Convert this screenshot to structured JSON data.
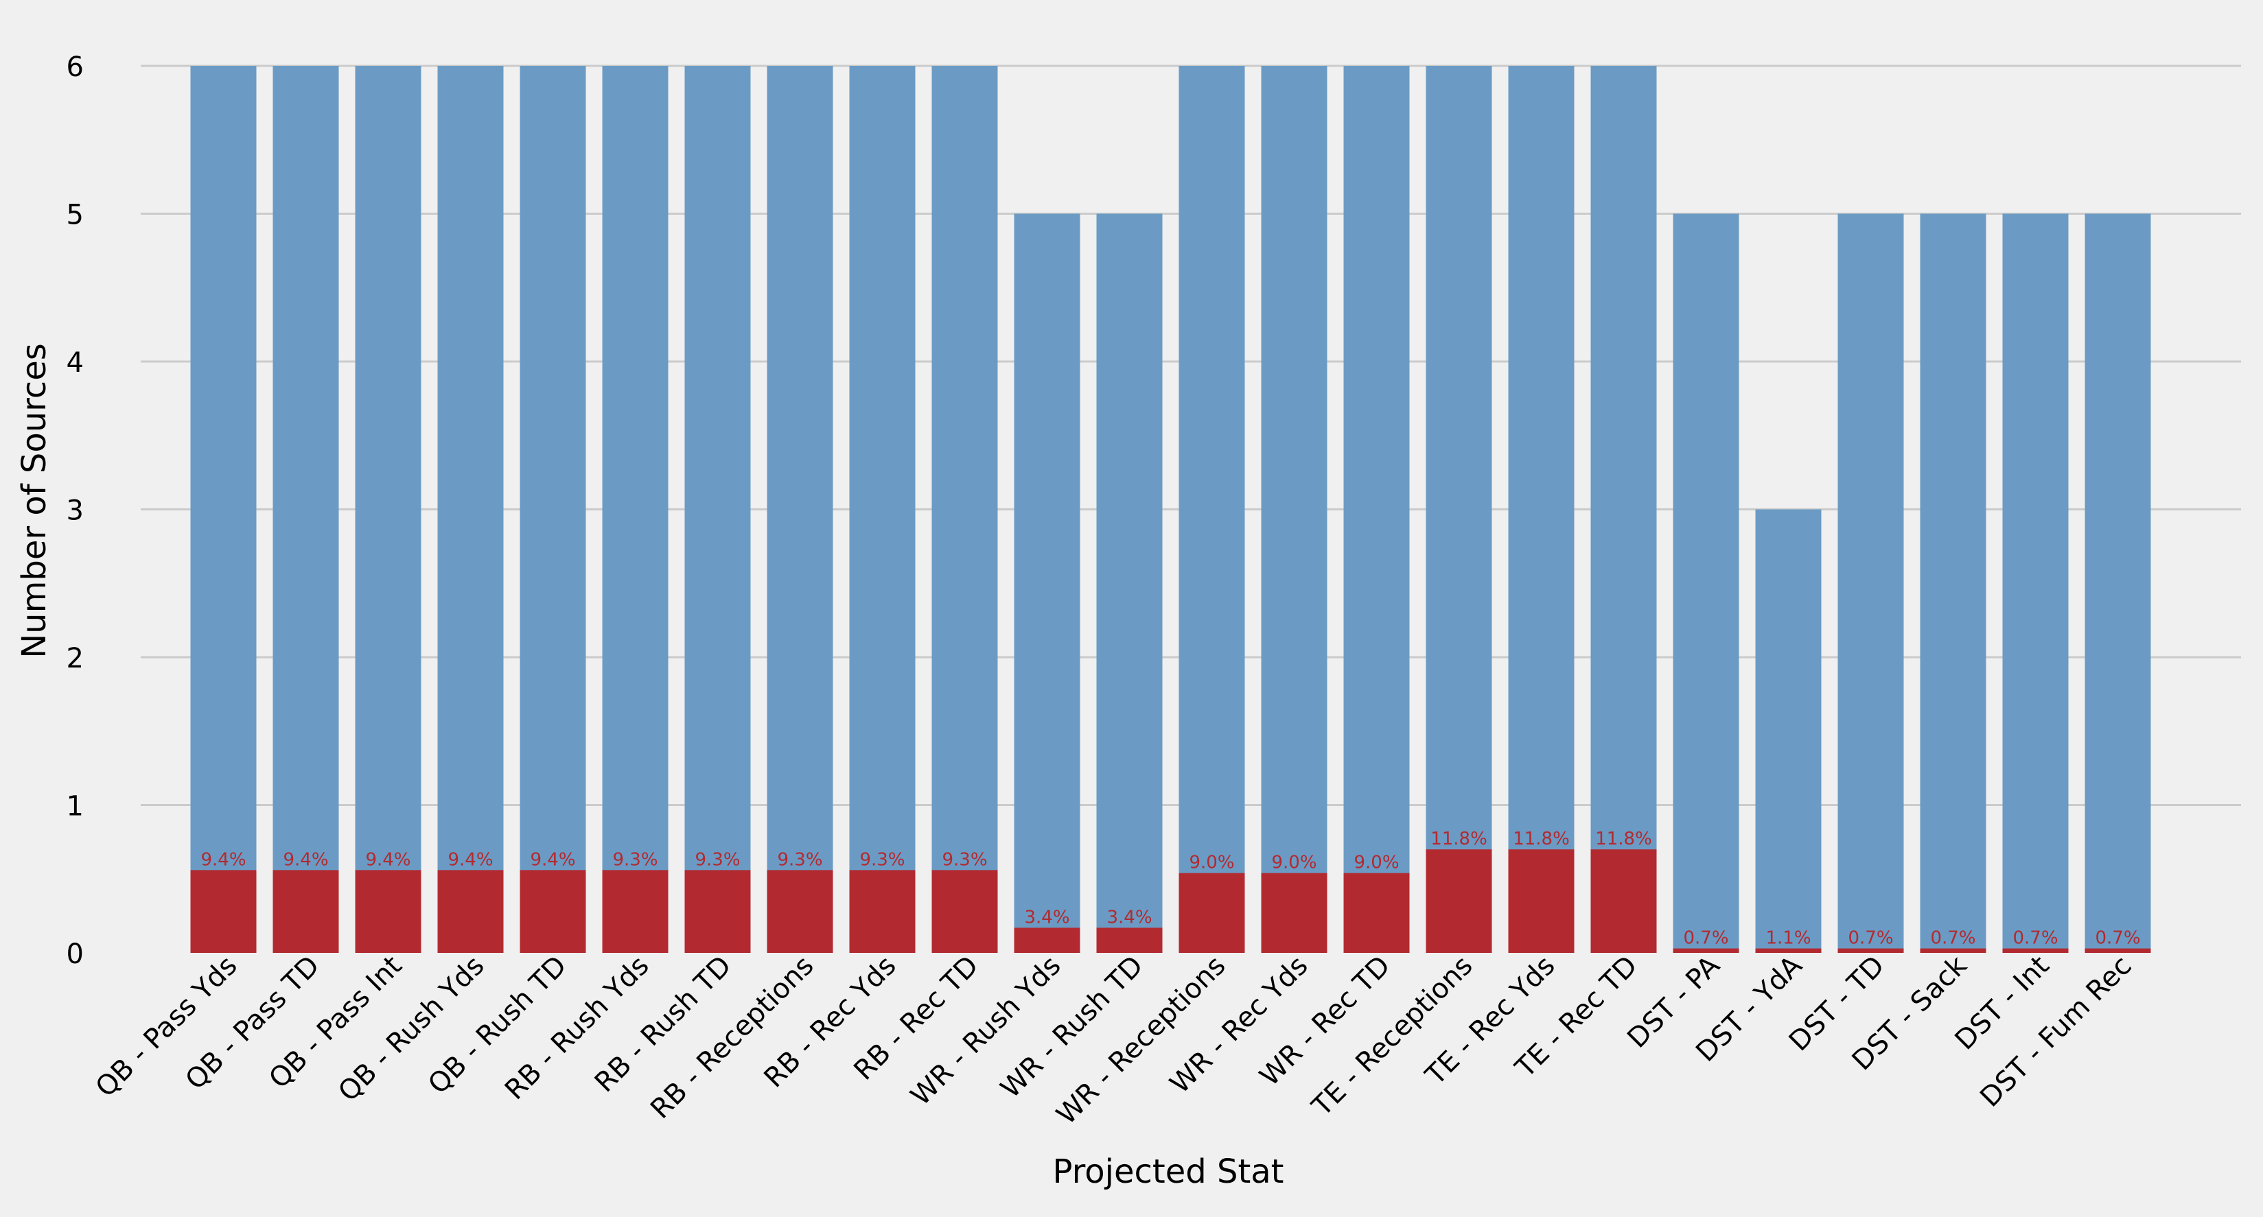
{
  "chart_data": {
    "type": "bar",
    "title": "",
    "xlabel": "Projected Stat",
    "ylabel": "Number of Sources",
    "ylim": [
      0,
      6.15
    ],
    "yticks": [
      0,
      1,
      2,
      3,
      4,
      5,
      6
    ],
    "grid": "horizontal",
    "categories": [
      "QB - Pass Yds",
      "QB - Pass TD",
      "QB - Pass Int",
      "QB - Rush Yds",
      "QB - Rush TD",
      "RB - Rush Yds",
      "RB - Rush TD",
      "RB - Receptions",
      "RB - Rec Yds",
      "RB - Rec TD",
      "WR - Rush Yds",
      "WR - Rush TD",
      "WR - Receptions",
      "WR - Rec Yds",
      "WR - Rec TD",
      "TE - Receptions",
      "TE - Rec Yds",
      "TE - Rec TD",
      "DST - PA",
      "DST - YdA",
      "DST - TD",
      "DST - Sack",
      "DST - Int",
      "DST - Fum Rec"
    ],
    "series": [
      {
        "role": "sources",
        "color": "#6b9bc4",
        "values": [
          6,
          6,
          6,
          6,
          6,
          6,
          6,
          6,
          6,
          6,
          5,
          5,
          6,
          6,
          6,
          6,
          6,
          6,
          5,
          3,
          5,
          5,
          5,
          5
        ]
      },
      {
        "role": "percent",
        "color": "#b22a30",
        "label_color": "#b22a30",
        "values": [
          0.56,
          0.56,
          0.56,
          0.56,
          0.56,
          0.56,
          0.56,
          0.56,
          0.56,
          0.56,
          0.17,
          0.17,
          0.54,
          0.54,
          0.54,
          0.7,
          0.7,
          0.7,
          0.03,
          0.03,
          0.03,
          0.03,
          0.03,
          0.03
        ],
        "data_labels": [
          "9.4%",
          "9.4%",
          "9.4%",
          "9.4%",
          "9.4%",
          "9.3%",
          "9.3%",
          "9.3%",
          "9.3%",
          "9.3%",
          "3.4%",
          "3.4%",
          "9.0%",
          "9.0%",
          "9.0%",
          "11.8%",
          "11.8%",
          "11.8%",
          "0.7%",
          "1.1%",
          "0.7%",
          "0.7%",
          "0.7%",
          "0.7%"
        ]
      }
    ]
  }
}
